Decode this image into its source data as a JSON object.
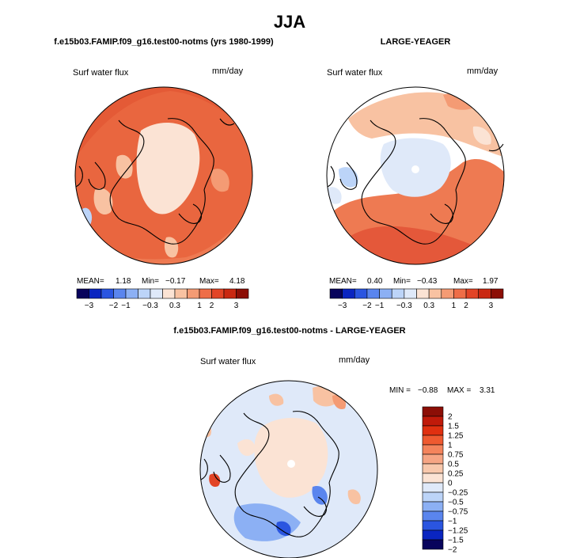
{
  "page": {
    "title": "JJA"
  },
  "panels": {
    "model": {
      "header": "f.e15b03.FAMIP.f09_g16.test00-notms (yrs 1980-1999)",
      "variable": "Surf water flux",
      "units": "mm/day",
      "stats": {
        "mean_label": "MEAN=",
        "mean": "1.18",
        "min_label": "Min=",
        "min": "−0.17",
        "max_label": "Max=",
        "max": "4.18"
      }
    },
    "obs": {
      "header": "LARGE-YEAGER",
      "variable": "Surf water flux",
      "units": "mm/day",
      "stats": {
        "mean_label": "MEAN=",
        "mean": "0.40",
        "min_label": "Min=",
        "min": "−0.43",
        "max_label": "Max=",
        "max": "1.97"
      }
    },
    "diff": {
      "header": "f.e15b03.FAMIP.f09_g16.test00-notms - LARGE-YEAGER",
      "variable": "Surf water flux",
      "units": "mm/day",
      "stats": {
        "min_label": "MIN =",
        "min": "−0.88",
        "max_label": "MAX =",
        "max": "3.31"
      }
    }
  },
  "colorbars": {
    "horizontal": {
      "colors": [
        "#08045c",
        "#0a25c0",
        "#2a55e0",
        "#5a85ee",
        "#8cb0f4",
        "#bcd4f8",
        "#dfe9f9",
        "#fbe3d4",
        "#f8c2a2",
        "#f49b74",
        "#ee6d47",
        "#e24426",
        "#c92812",
        "#8c0e06"
      ],
      "tick_labels": [
        "−3",
        "−2",
        "−1",
        "−0.3",
        "0.3",
        "1",
        "2",
        "3"
      ]
    },
    "vertical": {
      "colors_top_to_bottom": [
        "#8c0e06",
        "#c01a0a",
        "#e03010",
        "#ef5a30",
        "#f4845c",
        "#f6a584",
        "#f8c8ac",
        "#fbe3d4",
        "#dfe9f9",
        "#bcd4f8",
        "#8cb0f4",
        "#5a85ee",
        "#2a55e0",
        "#0a25c0",
        "#08045c"
      ],
      "tick_labels": [
        "2",
        "1.5",
        "1.25",
        "1",
        "0.75",
        "0.5",
        "0.25",
        "0",
        "−0.25",
        "−0.5",
        "−0.75",
        "−1",
        "−1.25",
        "−1.5",
        "−2"
      ]
    }
  },
  "chart_data": [
    {
      "type": "heatmap",
      "projection": "polar stereographic (north)",
      "title": "f.e15b03.FAMIP.f09_g16.test00-notms (yrs 1980-1999)",
      "variable": "Surf water flux",
      "units": "mm/day",
      "mean": 1.18,
      "min": -0.17,
      "max": 4.18,
      "contour_levels": [
        -3,
        -2,
        -1,
        -0.3,
        0.3,
        1,
        2,
        3
      ]
    },
    {
      "type": "heatmap",
      "projection": "polar stereographic (north)",
      "title": "LARGE-YEAGER",
      "variable": "Surf water flux",
      "units": "mm/day",
      "mean": 0.4,
      "min": -0.43,
      "max": 1.97,
      "contour_levels": [
        -3,
        -2,
        -1,
        -0.3,
        0.3,
        1,
        2,
        3
      ]
    },
    {
      "type": "heatmap",
      "projection": "polar stereographic (north)",
      "title": "f.e15b03.FAMIP.f09_g16.test00-notms - LARGE-YEAGER",
      "variable": "Surf water flux",
      "units": "mm/day",
      "min": -0.88,
      "max": 3.31,
      "contour_levels": [
        -2,
        -1.5,
        -1.25,
        -1,
        -0.75,
        -0.5,
        -0.25,
        0,
        0.25,
        0.5,
        0.75,
        1,
        1.25,
        1.5,
        2
      ]
    }
  ]
}
